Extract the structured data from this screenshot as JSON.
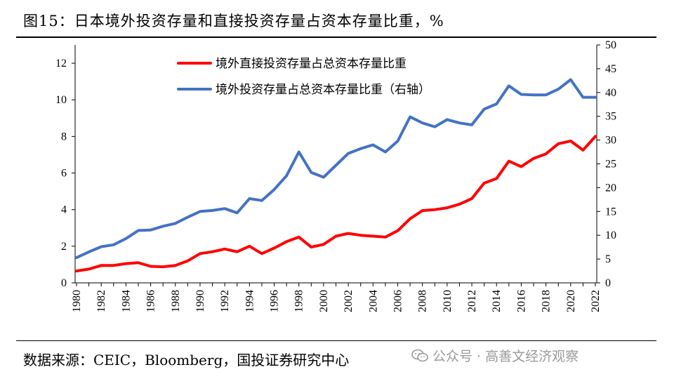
{
  "title": "图15：日本境外投资存量和直接投资存量占资本存量比重，%",
  "source": "数据来源：CEIC，Bloomberg，国投证券研究中心",
  "watermark": "公众号 · 高善文经济观察",
  "chart_data": {
    "type": "line",
    "x": [
      1980,
      1981,
      1982,
      1983,
      1984,
      1985,
      1986,
      1987,
      1988,
      1989,
      1990,
      1991,
      1992,
      1993,
      1994,
      1995,
      1996,
      1997,
      1998,
      1999,
      2000,
      2001,
      2002,
      2003,
      2004,
      2005,
      2006,
      2007,
      2008,
      2009,
      2010,
      2011,
      2012,
      2013,
      2014,
      2015,
      2016,
      2017,
      2018,
      2019,
      2020,
      2021,
      2022
    ],
    "x_ticks": [
      "1980",
      "1982",
      "1984",
      "1986",
      "1988",
      "1990",
      "1992",
      "1994",
      "1996",
      "1998",
      "2000",
      "2002",
      "2004",
      "2006",
      "2008",
      "2010",
      "2012",
      "2014",
      "2016",
      "2018",
      "2020",
      "2022"
    ],
    "series": [
      {
        "name": "境外直接投资存量占总资本存量比重",
        "axis": "left",
        "color": "#ff0000",
        "values": [
          0.65,
          0.75,
          0.95,
          0.95,
          1.05,
          1.1,
          0.9,
          0.88,
          0.95,
          1.2,
          1.6,
          1.7,
          1.85,
          1.7,
          2.0,
          1.6,
          1.9,
          2.25,
          2.5,
          1.95,
          2.1,
          2.55,
          2.7,
          2.6,
          2.55,
          2.5,
          2.85,
          3.5,
          3.95,
          4.0,
          4.1,
          4.3,
          4.6,
          5.45,
          5.7,
          6.65,
          6.35,
          6.8,
          7.05,
          7.6,
          7.75,
          7.25,
          8.0
        ]
      },
      {
        "name": "境外投资存量占总资本存量比重（右轴）",
        "axis": "right",
        "color": "#4472c4",
        "values": [
          5.3,
          6.5,
          7.6,
          8.0,
          9.3,
          11.0,
          11.1,
          11.9,
          12.5,
          13.8,
          15.0,
          15.2,
          15.6,
          14.7,
          17.7,
          17.3,
          19.6,
          22.5,
          27.5,
          23.2,
          22.2,
          24.7,
          27.2,
          28.2,
          29.0,
          27.5,
          29.8,
          34.9,
          33.6,
          32.8,
          34.3,
          33.6,
          33.2,
          36.5,
          37.6,
          41.4,
          39.6,
          39.5,
          39.5,
          40.7,
          42.7,
          39.0,
          39.0
        ]
      }
    ],
    "y_left": {
      "ticks": [
        "0",
        "2",
        "4",
        "6",
        "8",
        "10",
        "12"
      ],
      "min": 0,
      "max": 13
    },
    "y_right": {
      "ticks": [
        "0",
        "5",
        "10",
        "15",
        "20",
        "25",
        "30",
        "35",
        "40",
        "45",
        "50"
      ],
      "min": 0,
      "max": 50
    },
    "legend_placement": "top-center",
    "grid": false
  }
}
